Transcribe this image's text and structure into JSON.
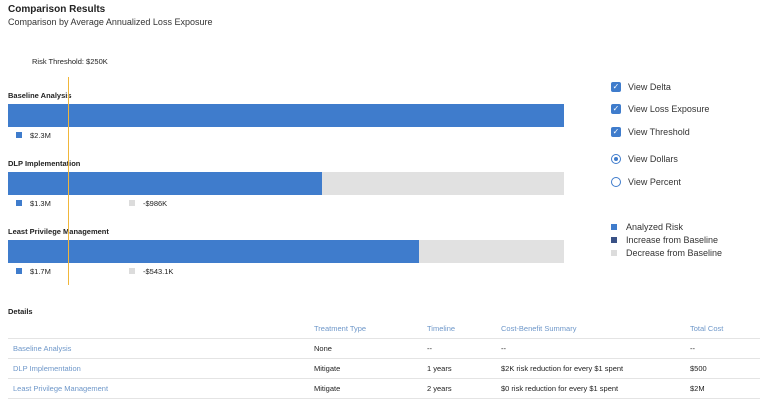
{
  "header": {
    "title": "Comparison Results",
    "subtitle": "Comparison by Average Annualized Loss Exposure"
  },
  "threshold": {
    "label": "Risk Threshold: $250K"
  },
  "chart_data": {
    "type": "bar",
    "orientation": "horizontal",
    "categories": [
      "Baseline Analysis",
      "DLP Implementation",
      "Least Privilege Management"
    ],
    "series": [
      {
        "name": "Analyzed Risk",
        "values": [
          2.3,
          1.3,
          1.7
        ],
        "labels": [
          "$2.3M",
          "$1.3M",
          "$1.7M"
        ],
        "color": "#3f7ccc"
      },
      {
        "name": "Decrease from Baseline",
        "values": [
          0,
          0.986,
          0.5431
        ],
        "labels": [
          "",
          "-$986K",
          "-$543.1K"
        ],
        "color": "#e1e1e1"
      }
    ],
    "threshold_value": 0.25,
    "xlim": [
      0,
      2.3
    ],
    "units": "$M"
  },
  "controls": {
    "checkboxes": [
      {
        "label": "View Delta",
        "checked": true
      },
      {
        "label": "View Loss Exposure",
        "checked": true
      },
      {
        "label": "View Threshold",
        "checked": true
      }
    ],
    "radios": [
      {
        "label": "View Dollars",
        "selected": true
      },
      {
        "label": "View Percent",
        "selected": false
      }
    ]
  },
  "legend": [
    {
      "label": "Analyzed Risk",
      "color": "#3f7ccc"
    },
    {
      "label": "Increase from Baseline",
      "color": "#3a5286"
    },
    {
      "label": "Decrease from Baseline",
      "color": "#dcdcdc"
    }
  ],
  "details": {
    "title": "Details",
    "columns": [
      "Treatment Type",
      "Timeline",
      "Cost-Benefit Summary",
      "Total Cost"
    ],
    "rows": [
      {
        "name": "Baseline Analysis",
        "treatment": "None",
        "timeline": "--",
        "summary": "--",
        "cost": "--"
      },
      {
        "name": "DLP Implementation",
        "treatment": "Mitigate",
        "timeline": "1 years",
        "summary": "$2K risk reduction for every $1 spent",
        "cost": "$500"
      },
      {
        "name": "Least Privilege Management",
        "treatment": "Mitigate",
        "timeline": "2 years",
        "summary": "$0 risk reduction for every $1 spent",
        "cost": "$2M"
      }
    ]
  }
}
